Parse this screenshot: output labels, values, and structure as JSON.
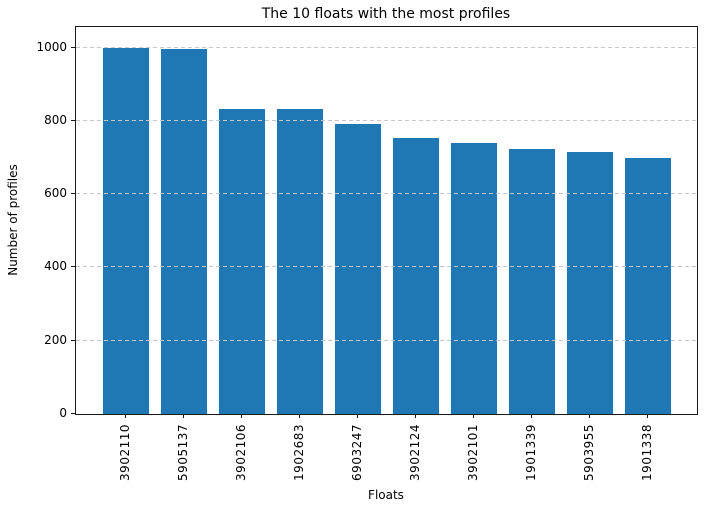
{
  "chart_data": {
    "type": "bar",
    "title": "The 10 floats with the most profiles",
    "xlabel": "Floats",
    "ylabel": "Number of profiles",
    "categories": [
      "3902110",
      "5905137",
      "3902106",
      "1902683",
      "6903247",
      "3902124",
      "3902101",
      "1901339",
      "5903955",
      "1901338"
    ],
    "values": [
      1000,
      996,
      832,
      831,
      790,
      754,
      740,
      722,
      716,
      698
    ],
    "yticks": [
      0,
      200,
      400,
      600,
      800,
      1000
    ],
    "ylim": [
      0,
      1056
    ],
    "bar_color": "#1f77b4",
    "grid": true,
    "grid_axis": "y",
    "grid_style": "dashed",
    "grid_color": "#c6c6c6",
    "legend": false,
    "xtick_rotation": 90
  }
}
